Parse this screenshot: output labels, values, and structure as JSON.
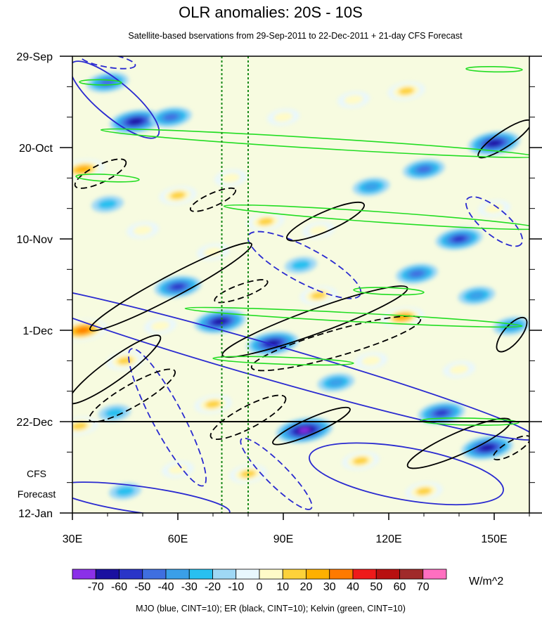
{
  "chart_data": {
    "type": "heatmap",
    "title": "OLR anomalies: 20S - 10S",
    "subtitle": "Satellite-based bservations from 29-Sep-2011 to 22-Dec-2011 + 21-day CFS Forecast",
    "x_ticks": [
      "30E",
      "60E",
      "90E",
      "120E",
      "150E"
    ],
    "x_tick_values": [
      30,
      60,
      90,
      120,
      150
    ],
    "xlim": [
      30,
      160
    ],
    "y_ticks": [
      "29-Sep",
      "20-Oct",
      "10-Nov",
      "1-Dec",
      "22-Dec",
      "12-Jan"
    ],
    "y_tick_days": [
      0,
      21,
      42,
      63,
      84,
      105
    ],
    "ylim_days": [
      0,
      105
    ],
    "forecast_start": "22-Dec",
    "forecast_start_day": 84,
    "forecast_label": [
      "CFS",
      "Forecast"
    ],
    "vertical_reference_lons": [
      72.5,
      80
    ],
    "colorbar": {
      "labels": [
        "-70",
        "-60",
        "-50",
        "-40",
        "-30",
        "-20",
        "-10",
        "0",
        "10",
        "20",
        "30",
        "40",
        "50",
        "60",
        "70"
      ],
      "colors": [
        "#8b30e8",
        "#1a10a0",
        "#2a35c8",
        "#3f6fe0",
        "#3a9fe8",
        "#28c0f0",
        "#9fd8f5",
        "#e8f7fd",
        "#fffbc8",
        "#fdd23a",
        "#ffb000",
        "#ff7a00",
        "#ee1a1a",
        "#b81010",
        "#a02a2a",
        "#ff6fc0"
      ],
      "units": "W/m^2"
    },
    "caption": "MJO (blue, CINT=10); ER (black, CINT=10); Kelvin (green, CINT=10)",
    "contour_colors": {
      "MJO": "#2a2ad0",
      "ER": "#000000",
      "Kelvin": "#22dd22"
    },
    "anomaly_blobs": [
      {
        "lon": 40,
        "day": 6,
        "value": -40
      },
      {
        "lon": 48,
        "day": 15,
        "value": -60
      },
      {
        "lon": 58,
        "day": 14,
        "value": -40
      },
      {
        "lon": 33,
        "day": 26,
        "value": 40
      },
      {
        "lon": 40,
        "day": 34,
        "value": -20
      },
      {
        "lon": 60,
        "day": 32,
        "value": 30
      },
      {
        "lon": 75,
        "day": 28,
        "value": 20
      },
      {
        "lon": 90,
        "day": 14,
        "value": 20
      },
      {
        "lon": 110,
        "day": 10,
        "value": 20
      },
      {
        "lon": 125,
        "day": 8,
        "value": 30
      },
      {
        "lon": 150,
        "day": 20,
        "value": -60
      },
      {
        "lon": 130,
        "day": 26,
        "value": -40
      },
      {
        "lon": 115,
        "day": 30,
        "value": -30
      },
      {
        "lon": 140,
        "day": 42,
        "value": -50
      },
      {
        "lon": 100,
        "day": 40,
        "value": 20
      },
      {
        "lon": 85,
        "day": 38,
        "value": 30
      },
      {
        "lon": 60,
        "day": 53,
        "value": -50
      },
      {
        "lon": 72,
        "day": 61,
        "value": -60
      },
      {
        "lon": 87,
        "day": 66,
        "value": -60
      },
      {
        "lon": 33,
        "day": 63,
        "value": 50
      },
      {
        "lon": 45,
        "day": 70,
        "value": 30
      },
      {
        "lon": 55,
        "day": 62,
        "value": 20
      },
      {
        "lon": 128,
        "day": 50,
        "value": -40
      },
      {
        "lon": 145,
        "day": 55,
        "value": -30
      },
      {
        "lon": 124,
        "day": 60,
        "value": 40
      },
      {
        "lon": 100,
        "day": 55,
        "value": 30
      },
      {
        "lon": 140,
        "day": 72,
        "value": 20
      },
      {
        "lon": 155,
        "day": 62,
        "value": -30
      },
      {
        "lon": 32,
        "day": 85,
        "value": 30
      },
      {
        "lon": 42,
        "day": 82,
        "value": -20
      },
      {
        "lon": 70,
        "day": 80,
        "value": 30
      },
      {
        "lon": 96,
        "day": 86,
        "value": -70
      },
      {
        "lon": 135,
        "day": 82,
        "value": -50
      },
      {
        "lon": 148,
        "day": 90,
        "value": -60
      },
      {
        "lon": 112,
        "day": 93,
        "value": 30
      },
      {
        "lon": 60,
        "day": 95,
        "value": 20
      },
      {
        "lon": 80,
        "day": 96,
        "value": 30
      },
      {
        "lon": 45,
        "day": 100,
        "value": -20
      },
      {
        "lon": 130,
        "day": 100,
        "value": 30
      },
      {
        "lon": 105,
        "day": 75,
        "value": -30
      },
      {
        "lon": 115,
        "day": 70,
        "value": 20
      },
      {
        "lon": 50,
        "day": 40,
        "value": 20
      },
      {
        "lon": 95,
        "day": 48,
        "value": -20
      },
      {
        "lon": 70,
        "day": 45,
        "value": 20
      },
      {
        "lon": 150,
        "day": 35,
        "value": 20
      }
    ],
    "contours": [
      {
        "set": "MJO",
        "dashed": false,
        "lon": 42,
        "day": 10,
        "rlon": 16,
        "rday": 4,
        "rot": 40
      },
      {
        "set": "MJO",
        "dashed": false,
        "lon": 85,
        "day": 70,
        "rlon": 80,
        "rday": 4,
        "rot": 16
      },
      {
        "set": "MJO",
        "dashed": true,
        "lon": 57,
        "day": 83,
        "rlon": 22,
        "rday": 3.5,
        "rot": 62
      },
      {
        "set": "MJO",
        "dashed": true,
        "lon": 96,
        "day": 48,
        "rlon": 18,
        "rday": 4,
        "rot": 28
      },
      {
        "set": "MJO",
        "dashed": false,
        "lon": 125,
        "day": 96,
        "rlon": 28,
        "rday": 6,
        "rot": 10
      },
      {
        "set": "MJO",
        "dashed": true,
        "lon": 150,
        "day": 38,
        "rlon": 10,
        "rday": 3,
        "rot": 40
      },
      {
        "set": "MJO",
        "dashed": false,
        "lon": 50,
        "day": 102,
        "rlon": 25,
        "rday": 3,
        "rot": 8
      },
      {
        "set": "MJO",
        "dashed": true,
        "lon": 40,
        "day": 1,
        "rlon": 8,
        "rday": 1.5,
        "rot": 10
      },
      {
        "set": "MJO",
        "dashed": true,
        "lon": 88,
        "day": 96,
        "rlon": 14,
        "rday": 2.5,
        "rot": 45
      },
      {
        "set": "ER",
        "dashed": false,
        "lon": 58,
        "day": 53,
        "rlon": 26,
        "rday": 2.5,
        "rot": -28
      },
      {
        "set": "ER",
        "dashed": false,
        "lon": 99,
        "day": 61,
        "rlon": 28,
        "rday": 2.8,
        "rot": -20
      },
      {
        "set": "ER",
        "dashed": false,
        "lon": 102,
        "day": 38,
        "rlon": 12,
        "rday": 2.2,
        "rot": -24
      },
      {
        "set": "ER",
        "dashed": true,
        "lon": 38,
        "day": 27,
        "rlon": 8,
        "rday": 2,
        "rot": -26
      },
      {
        "set": "ER",
        "dashed": true,
        "lon": 70,
        "day": 33,
        "rlon": 7,
        "rday": 1.5,
        "rot": -24
      },
      {
        "set": "ER",
        "dashed": true,
        "lon": 105,
        "day": 66,
        "rlon": 25,
        "rday": 3,
        "rot": -16
      },
      {
        "set": "ER",
        "dashed": true,
        "lon": 78,
        "day": 54,
        "rlon": 8,
        "rday": 1.5,
        "rot": -20
      },
      {
        "set": "ER",
        "dashed": false,
        "lon": 42,
        "day": 72,
        "rlon": 16,
        "rday": 2.5,
        "rot": -36
      },
      {
        "set": "ER",
        "dashed": true,
        "lon": 47,
        "day": 78,
        "rlon": 14,
        "rday": 2.5,
        "rot": -30
      },
      {
        "set": "ER",
        "dashed": true,
        "lon": 80,
        "day": 83,
        "rlon": 12,
        "rday": 2.5,
        "rot": -28
      },
      {
        "set": "ER",
        "dashed": false,
        "lon": 98,
        "day": 85,
        "rlon": 12,
        "rday": 1.8,
        "rot": -24
      },
      {
        "set": "ER",
        "dashed": false,
        "lon": 140,
        "day": 89,
        "rlon": 16,
        "rday": 2.5,
        "rot": -24
      },
      {
        "set": "ER",
        "dashed": false,
        "lon": 153,
        "day": 19,
        "rlon": 9,
        "rday": 1.8,
        "rot": -34
      },
      {
        "set": "ER",
        "dashed": false,
        "lon": 155,
        "day": 64,
        "rlon": 6,
        "rday": 2,
        "rot": -50
      },
      {
        "set": "ER",
        "dashed": true,
        "lon": 155,
        "day": 90,
        "rlon": 6,
        "rday": 1.5,
        "rot": -30
      },
      {
        "set": "Kelvin",
        "dashed": false,
        "lon": 100,
        "day": 20,
        "rlon": 62,
        "rday": 1.2,
        "rot": 3.5
      },
      {
        "set": "Kelvin",
        "dashed": false,
        "lon": 118,
        "day": 37,
        "rlon": 45,
        "rday": 1.2,
        "rot": 4
      },
      {
        "set": "Kelvin",
        "dashed": false,
        "lon": 110,
        "day": 60,
        "rlon": 48,
        "rday": 1,
        "rot": 3
      },
      {
        "set": "Kelvin",
        "dashed": false,
        "lon": 90,
        "day": 70,
        "rlon": 20,
        "rday": 0.8,
        "rot": 2
      },
      {
        "set": "Kelvin",
        "dashed": false,
        "lon": 40,
        "day": 28,
        "rlon": 9,
        "rday": 0.8,
        "rot": 3
      },
      {
        "set": "Kelvin",
        "dashed": false,
        "lon": 120,
        "day": 54,
        "rlon": 10,
        "rday": 0.8,
        "rot": 2
      },
      {
        "set": "Kelvin",
        "dashed": false,
        "lon": 143,
        "day": 84,
        "rlon": 14,
        "rday": 0.8,
        "rot": 1
      },
      {
        "set": "Kelvin",
        "dashed": false,
        "lon": 150,
        "day": 3,
        "rlon": 8,
        "rday": 0.6,
        "rot": 1
      },
      {
        "set": "Kelvin",
        "dashed": false,
        "lon": 38,
        "day": 6,
        "rlon": 6,
        "rday": 0.6,
        "rot": 1
      }
    ]
  }
}
